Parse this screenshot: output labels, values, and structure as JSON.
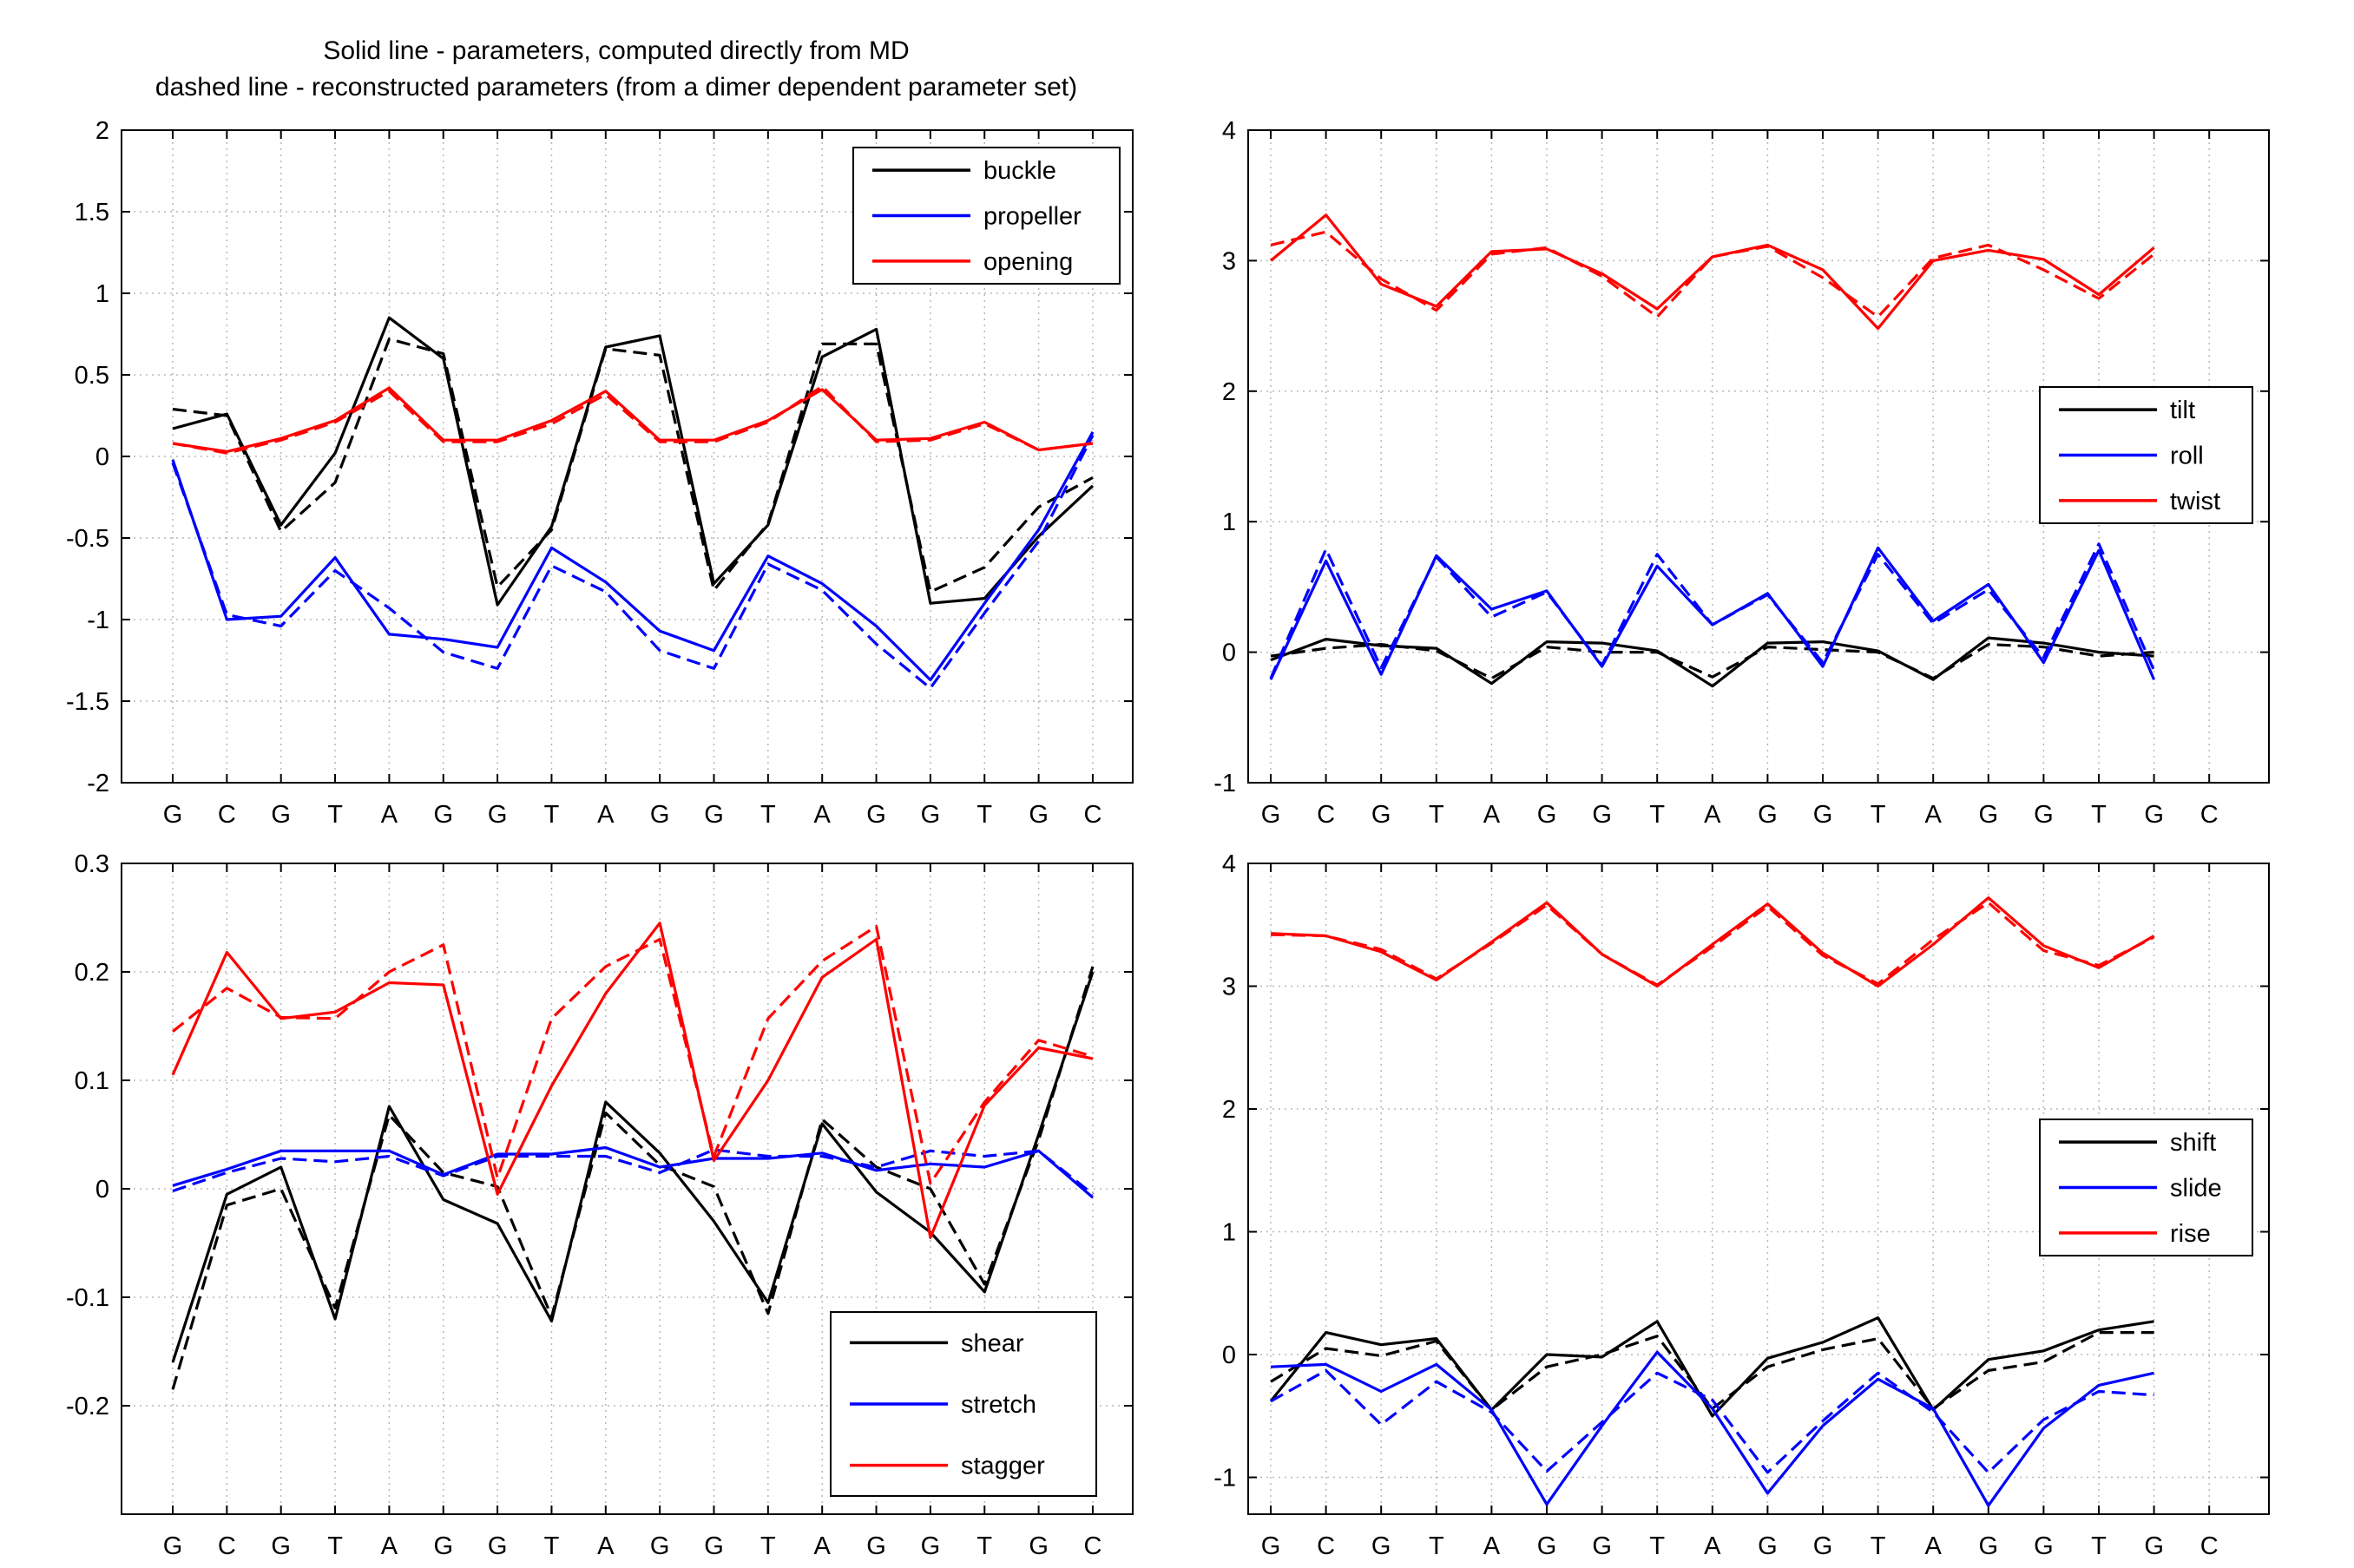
{
  "title_lines": [
    "Solid line - parameters, computed directly from MD",
    "dashed line - reconstructed parameters (from a dimer dependent parameter set)"
  ],
  "colors": {
    "black": "#000000",
    "blue": "#0000ff",
    "red": "#ff0000",
    "grid": "#b8b8b8"
  },
  "chart_data": [
    {
      "type": "line",
      "title": "",
      "categories": [
        "G",
        "C",
        "G",
        "T",
        "A",
        "G",
        "G",
        "T",
        "A",
        "G",
        "G",
        "T",
        "A",
        "G",
        "G",
        "T",
        "G",
        "C"
      ],
      "ylim": [
        -2,
        2
      ],
      "yticks": [
        -2,
        -1.5,
        -1,
        -0.5,
        0,
        0.5,
        1,
        1.5,
        2
      ],
      "ytick_labels": [
        "-2",
        "-1.5",
        "-1",
        "-0.5",
        "0",
        "0.5",
        "1",
        "1.5",
        "2"
      ],
      "x_index_range": [
        0,
        17
      ],
      "legend": "top-right",
      "grid": true,
      "series": [
        {
          "name": "buckle",
          "color": "#000000",
          "solid": [
            0.17,
            0.26,
            -0.42,
            0.02,
            0.85,
            0.6,
            -0.91,
            -0.43,
            0.67,
            0.74,
            -0.78,
            -0.42,
            0.61,
            0.78,
            -0.9,
            -0.87,
            -0.49,
            -0.18
          ],
          "dashed": [
            0.29,
            0.25,
            -0.46,
            -0.16,
            0.72,
            0.63,
            -0.8,
            -0.45,
            0.66,
            0.62,
            -0.82,
            -0.41,
            0.69,
            0.69,
            -0.83,
            -0.68,
            -0.31,
            -0.13
          ]
        },
        {
          "name": "propeller",
          "color": "#0000ff",
          "solid": [
            -0.02,
            -1.0,
            -0.98,
            -0.62,
            -1.09,
            -1.12,
            -1.17,
            -0.56,
            -0.77,
            -1.07,
            -1.19,
            -0.61,
            -0.78,
            -1.04,
            -1.37,
            -0.9,
            -0.45,
            0.15
          ],
          "dashed": [
            -0.04,
            -0.97,
            -1.04,
            -0.7,
            -0.93,
            -1.2,
            -1.3,
            -0.67,
            -0.83,
            -1.19,
            -1.3,
            -0.66,
            -0.82,
            -1.15,
            -1.42,
            -0.96,
            -0.52,
            0.13
          ]
        },
        {
          "name": "opening",
          "color": "#ff0000",
          "solid": [
            0.08,
            0.03,
            0.11,
            0.22,
            0.42,
            0.1,
            0.1,
            0.22,
            0.4,
            0.1,
            0.1,
            0.22,
            0.41,
            0.1,
            0.11,
            0.21,
            0.04,
            0.08
          ],
          "dashed": [
            0.08,
            0.02,
            0.1,
            0.21,
            0.4,
            0.09,
            0.09,
            0.2,
            0.38,
            0.09,
            0.09,
            0.21,
            0.43,
            0.09,
            0.1,
            0.2,
            0.04,
            0.08
          ]
        }
      ]
    },
    {
      "type": "line",
      "title": "",
      "categories": [
        "G",
        "C",
        "G",
        "T",
        "A",
        "G",
        "G",
        "T",
        "A",
        "G",
        "G",
        "T",
        "A",
        "G",
        "G",
        "T",
        "G",
        "C"
      ],
      "ylim": [
        -1,
        4
      ],
      "yticks": [
        -1,
        0,
        1,
        2,
        3,
        4
      ],
      "ytick_labels": [
        "-1",
        "0",
        "1",
        "2",
        "3",
        "4"
      ],
      "x_index_range": [
        0,
        17
      ],
      "legend": "middle-right",
      "grid": true,
      "series": [
        {
          "name": "tilt",
          "color": "#000000",
          "solid": [
            -0.06,
            0.1,
            0.05,
            0.03,
            -0.24,
            0.08,
            0.07,
            0.01,
            -0.26,
            0.07,
            0.08,
            0.01,
            -0.21,
            0.11,
            0.07,
            0.0,
            -0.03
          ],
          "dashed": [
            -0.03,
            0.03,
            0.06,
            0.01,
            -0.2,
            0.04,
            0.0,
            0.0,
            -0.19,
            0.04,
            0.02,
            0.0,
            -0.2,
            0.06,
            0.04,
            -0.03,
            0.0
          ]
        },
        {
          "name": "roll",
          "color": "#0000ff",
          "solid": [
            -0.21,
            0.7,
            -0.17,
            0.74,
            0.33,
            0.47,
            -0.11,
            0.66,
            0.21,
            0.45,
            -0.11,
            0.8,
            0.24,
            0.52,
            -0.08,
            0.78,
            -0.21
          ],
          "dashed": [
            -0.2,
            0.79,
            -0.12,
            0.73,
            0.27,
            0.46,
            -0.1,
            0.75,
            0.21,
            0.44,
            -0.08,
            0.75,
            0.22,
            0.48,
            -0.04,
            0.83,
            -0.14
          ]
        },
        {
          "name": "twist",
          "color": "#ff0000",
          "solid": [
            3.0,
            3.35,
            2.82,
            2.65,
            3.07,
            3.09,
            2.9,
            2.63,
            3.03,
            3.12,
            2.93,
            2.48,
            3.0,
            3.08,
            3.01,
            2.74,
            3.1
          ],
          "dashed": [
            3.12,
            3.22,
            2.86,
            2.62,
            3.05,
            3.1,
            2.88,
            2.57,
            3.03,
            3.11,
            2.87,
            2.57,
            3.02,
            3.12,
            2.93,
            2.71,
            3.05
          ]
        }
      ]
    },
    {
      "type": "line",
      "title": "",
      "categories": [
        "G",
        "C",
        "G",
        "T",
        "A",
        "G",
        "G",
        "T",
        "A",
        "G",
        "G",
        "T",
        "A",
        "G",
        "G",
        "T",
        "G",
        "C"
      ],
      "ylim": [
        -0.3,
        0.3
      ],
      "yticks": [
        -0.2,
        -0.1,
        0,
        0.1,
        0.2,
        0.3
      ],
      "ytick_labels": [
        "-0.2",
        "-0.1",
        "0",
        "0.1",
        "0.2",
        "0.3"
      ],
      "x_index_range": [
        0,
        17
      ],
      "legend": "bottom-right",
      "grid": true,
      "series": [
        {
          "name": "shear",
          "color": "#000000",
          "solid": [
            -0.16,
            -0.005,
            0.02,
            -0.12,
            0.076,
            -0.01,
            -0.032,
            -0.122,
            0.08,
            0.033,
            -0.03,
            -0.105,
            0.06,
            -0.003,
            -0.04,
            -0.095,
            0.05,
            0.2
          ],
          "dashed": [
            -0.185,
            -0.015,
            0.0,
            -0.11,
            0.068,
            0.015,
            0.002,
            -0.118,
            0.07,
            0.022,
            0.002,
            -0.115,
            0.064,
            0.02,
            0.0,
            -0.088,
            0.045,
            0.205
          ]
        },
        {
          "name": "stretch",
          "color": "#0000ff",
          "solid": [
            0.003,
            0.018,
            0.035,
            0.035,
            0.035,
            0.013,
            0.032,
            0.032,
            0.038,
            0.02,
            0.028,
            0.028,
            0.033,
            0.017,
            0.023,
            0.02,
            0.035,
            -0.008
          ],
          "dashed": [
            -0.002,
            0.015,
            0.028,
            0.025,
            0.03,
            0.012,
            0.03,
            0.03,
            0.03,
            0.015,
            0.036,
            0.03,
            0.03,
            0.02,
            0.035,
            0.03,
            0.035,
            -0.005
          ]
        },
        {
          "name": "stagger",
          "color": "#ff0000",
          "solid": [
            0.105,
            0.218,
            0.157,
            0.163,
            0.19,
            0.188,
            -0.005,
            0.095,
            0.18,
            0.245,
            0.026,
            0.1,
            0.195,
            0.23,
            -0.045,
            0.077,
            0.13,
            0.12
          ],
          "dashed": [
            0.145,
            0.185,
            0.158,
            0.157,
            0.2,
            0.225,
            0.01,
            0.157,
            0.205,
            0.23,
            0.03,
            0.157,
            0.21,
            0.242,
            0.005,
            0.08,
            0.137,
            0.122
          ]
        }
      ]
    },
    {
      "type": "line",
      "title": "",
      "categories": [
        "G",
        "C",
        "G",
        "T",
        "A",
        "G",
        "G",
        "T",
        "A",
        "G",
        "G",
        "T",
        "A",
        "G",
        "G",
        "T",
        "G",
        "C"
      ],
      "ylim": [
        -1.3,
        4
      ],
      "yticks": [
        -1,
        0,
        1,
        2,
        3,
        4
      ],
      "ytick_labels": [
        "-1",
        "0",
        "1",
        "2",
        "3",
        "4"
      ],
      "x_index_range": [
        0,
        17
      ],
      "legend": "middle-right",
      "grid": true,
      "series": [
        {
          "name": "shift",
          "color": "#000000",
          "solid": [
            -0.38,
            0.18,
            0.08,
            0.13,
            -0.45,
            0.0,
            -0.02,
            0.27,
            -0.5,
            -0.03,
            0.1,
            0.3,
            -0.45,
            -0.04,
            0.03,
            0.2,
            0.27
          ],
          "dashed": [
            -0.22,
            0.05,
            -0.01,
            0.11,
            -0.45,
            -0.1,
            0.0,
            0.15,
            -0.44,
            -0.1,
            0.04,
            0.13,
            -0.44,
            -0.13,
            -0.06,
            0.18,
            0.18
          ]
        },
        {
          "name": "slide",
          "color": "#0000ff",
          "solid": [
            -0.1,
            -0.08,
            -0.3,
            -0.08,
            -0.45,
            -1.22,
            -0.58,
            0.02,
            -0.44,
            -1.13,
            -0.58,
            -0.2,
            -0.44,
            -1.23,
            -0.6,
            -0.25,
            -0.15
          ],
          "dashed": [
            -0.38,
            -0.13,
            -0.57,
            -0.22,
            -0.47,
            -0.95,
            -0.55,
            -0.15,
            -0.37,
            -0.96,
            -0.54,
            -0.15,
            -0.47,
            -0.96,
            -0.53,
            -0.3,
            -0.33
          ]
        },
        {
          "name": "rise",
          "color": "#ff0000",
          "solid": [
            3.43,
            3.41,
            3.28,
            3.05,
            3.36,
            3.68,
            3.26,
            3.0,
            3.34,
            3.67,
            3.27,
            3.0,
            3.34,
            3.72,
            3.33,
            3.15,
            3.41
          ],
          "dashed": [
            3.42,
            3.41,
            3.3,
            3.06,
            3.35,
            3.66,
            3.26,
            3.01,
            3.32,
            3.65,
            3.25,
            3.02,
            3.38,
            3.68,
            3.29,
            3.17,
            3.4
          ]
        }
      ]
    }
  ]
}
